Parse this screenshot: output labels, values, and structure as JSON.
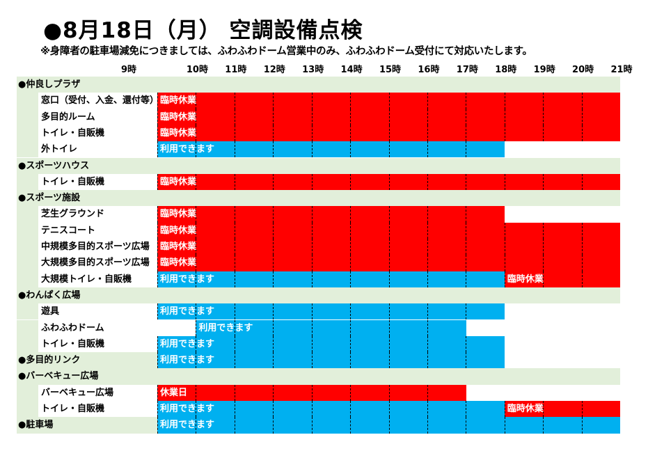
{
  "title": "●8月18日（月） 空調設備点検",
  "note": "※身障者の駐車場減免につきましては、ふわふわドーム営業中のみ、ふわふわドーム受付にて対応いたします。",
  "hours": [
    "9時",
    "10時",
    "11時",
    "12時",
    "13時",
    "14時",
    "15時",
    "16時",
    "17時",
    "18時",
    "19時",
    "20時",
    "21時"
  ],
  "colors": {
    "closed": "#ff0000",
    "open": "#00b0f0",
    "section_bg": "#e2efda"
  },
  "rows": [
    {
      "type": "section",
      "label": "●仲良しプラザ",
      "segments": []
    },
    {
      "type": "item",
      "label": "窓口（受付、入金、還付等）",
      "segments": [
        {
          "start": 9,
          "end": 21,
          "status": "closed",
          "text": "臨時休業"
        }
      ]
    },
    {
      "type": "item",
      "label": "多目的ルーム",
      "segments": [
        {
          "start": 9,
          "end": 21,
          "status": "closed",
          "text": "臨時休業"
        }
      ]
    },
    {
      "type": "item",
      "label": "トイレ・自販機",
      "segments": [
        {
          "start": 9,
          "end": 21,
          "status": "closed",
          "text": "臨時休業"
        }
      ]
    },
    {
      "type": "item",
      "label": "外トイレ",
      "segments": [
        {
          "start": 9,
          "end": 18,
          "status": "open",
          "text": "利用できます"
        }
      ]
    },
    {
      "type": "section",
      "label": "●スポーツハウス",
      "segments": []
    },
    {
      "type": "item",
      "label": "トイレ・自販機",
      "segments": [
        {
          "start": 9,
          "end": 21,
          "status": "closed",
          "text": "臨時休業"
        }
      ]
    },
    {
      "type": "section",
      "label": "●スポーツ施設",
      "segments": []
    },
    {
      "type": "item",
      "label": "芝生グラウンド",
      "segments": [
        {
          "start": 9,
          "end": 18,
          "status": "closed",
          "text": "臨時休業"
        }
      ]
    },
    {
      "type": "item",
      "label": "テニスコート",
      "segments": [
        {
          "start": 9,
          "end": 21,
          "status": "closed",
          "text": "臨時休業"
        }
      ]
    },
    {
      "type": "item",
      "label": "中規模多目的スポーツ広場",
      "segments": [
        {
          "start": 9,
          "end": 21,
          "status": "closed",
          "text": "臨時休業"
        }
      ]
    },
    {
      "type": "item",
      "label": "大規模多目的スポーツ広場",
      "segments": [
        {
          "start": 9,
          "end": 21,
          "status": "closed",
          "text": "臨時休業"
        }
      ]
    },
    {
      "type": "item",
      "label": "大規模トイレ・自販機",
      "segments": [
        {
          "start": 9,
          "end": 18,
          "status": "open",
          "text": "利用できます"
        },
        {
          "start": 18,
          "end": 21,
          "status": "closed",
          "text": "臨時休業"
        }
      ]
    },
    {
      "type": "section",
      "label": "●わんぱく広場",
      "segments": []
    },
    {
      "type": "item",
      "label": "遊具",
      "segments": [
        {
          "start": 9,
          "end": 18,
          "status": "open",
          "text": "利用できます"
        }
      ]
    },
    {
      "type": "item",
      "label": "ふわふわドーム",
      "segments": [
        {
          "start": 10,
          "end": 17,
          "status": "open",
          "text": "利用できます"
        }
      ]
    },
    {
      "type": "item",
      "label": "トイレ・自販機",
      "segments": [
        {
          "start": 9,
          "end": 18,
          "status": "open",
          "text": "利用できます"
        }
      ]
    },
    {
      "type": "section",
      "label": "●多目的リンク",
      "segments": [
        {
          "start": 9,
          "end": 18,
          "status": "open",
          "text": "利用できます"
        }
      ]
    },
    {
      "type": "section",
      "label": "●バーベキュー広場",
      "segments": []
    },
    {
      "type": "item",
      "label": "バーベキュー広場",
      "segments": [
        {
          "start": 9,
          "end": 17,
          "status": "closed",
          "text": "休業日"
        }
      ]
    },
    {
      "type": "item",
      "label": "トイレ・自販機",
      "segments": [
        {
          "start": 9,
          "end": 18,
          "status": "open",
          "text": "利用できます"
        },
        {
          "start": 18,
          "end": 21,
          "status": "closed",
          "text": "臨時休業"
        }
      ]
    },
    {
      "type": "section",
      "label": "●駐車場",
      "segments": [
        {
          "start": 9,
          "end": 21,
          "status": "open",
          "text": "利用できます"
        }
      ]
    }
  ]
}
